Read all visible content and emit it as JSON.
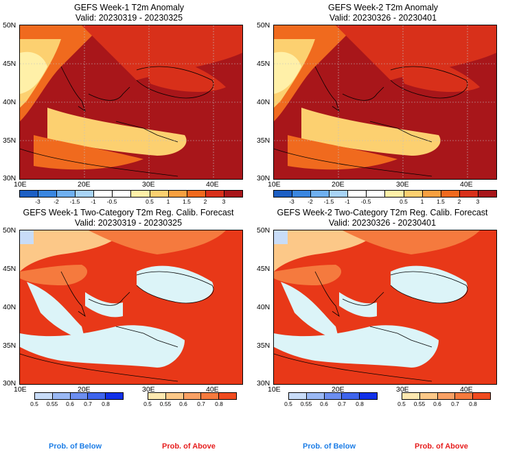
{
  "panels": [
    {
      "title": "GEFS Week-1 T2m Anomaly",
      "valid": "Valid: 20230319 - 20230325"
    },
    {
      "title": "GEFS Week-2 T2m Anomaly",
      "valid": "Valid: 20230326 - 20230401"
    },
    {
      "title": "GEFS Week-1 Two-Category T2m Reg. Calib. Forecast",
      "valid": "Valid: 20230319 - 20230325"
    },
    {
      "title": "GEFS Week-2 Two-Category T2m Reg. Calib. Forecast",
      "valid": "Valid: 20230326 - 20230401"
    }
  ],
  "lat_labels": [
    "50N",
    "45N",
    "40N",
    "35N",
    "30N"
  ],
  "lon_labels": [
    "10E",
    "20E",
    "30E",
    "40E"
  ],
  "anomaly_colorbar": {
    "labels": [
      "-3",
      "-2",
      "-1.5",
      "-1",
      "-0.5",
      "0.5",
      "1",
      "1.5",
      "2",
      "3"
    ],
    "colors": [
      "#1c5fc4",
      "#3a86e0",
      "#6fb0f0",
      "#a8d4f7",
      "#ffffff",
      "#ffffff",
      "#fff0a8",
      "#fcd070",
      "#f8a040",
      "#f06a1e",
      "#d8301a",
      "#a8161a"
    ]
  },
  "prob_colorbars": {
    "below": {
      "labels": [
        "0.5",
        "0.55",
        "0.6",
        "0.7",
        "0.8"
      ],
      "colors": [
        "#c8dcf8",
        "#9ab8f4",
        "#6c8ef0",
        "#3e64ec",
        "#1030e8"
      ]
    },
    "above": {
      "labels": [
        "0.5",
        "0.55",
        "0.6",
        "0.7",
        "0.8"
      ],
      "colors": [
        "#fde8b0",
        "#fcc888",
        "#f9a064",
        "#f57a3e",
        "#f04a1e"
      ]
    }
  },
  "legend": {
    "below": "Prob. of Below",
    "above": "Prob. of Above"
  },
  "colors": {
    "ocean_prob": "#dcf4f8",
    "above_main": "#e83818",
    "above_mid": "#f57a3e",
    "above_light": "#fcc888",
    "anom_dark": "#a8161a",
    "anom_mid": "#d8301a",
    "anom_orange": "#f06a1e",
    "anom_yellow": "#fcd070",
    "anom_pale": "#fff0a8"
  }
}
